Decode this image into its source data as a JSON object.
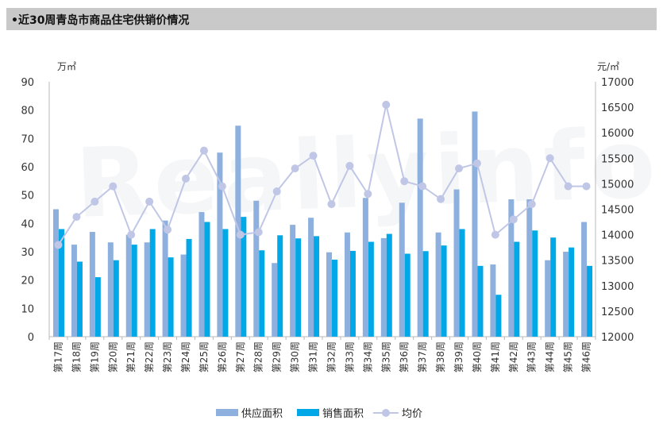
{
  "header": {
    "title": "•近30周青岛市商品住宅供销价情况"
  },
  "watermark": "Reallyinfo",
  "colors": {
    "supply": "#8eb0de",
    "sales": "#00a8e8",
    "price": "#c0c7e6",
    "header_bg": "#c9c9c9"
  },
  "chart_data": {
    "type": "bar",
    "left_unit": "万㎡",
    "right_unit": "元/㎡",
    "left_ticks": [
      "90",
      "80",
      "70",
      "60",
      "50",
      "40",
      "30",
      "20",
      "10",
      "0"
    ],
    "right_ticks": [
      "17000",
      "16500",
      "16000",
      "15500",
      "15000",
      "14500",
      "14000",
      "13500",
      "13000",
      "12500",
      "12000"
    ],
    "ylim_left": [
      0,
      90
    ],
    "ylim_right": [
      12000,
      17000
    ],
    "categories": [
      "第17周",
      "第18周",
      "第19周",
      "第20周",
      "第21周",
      "第22周",
      "第23周",
      "第24周",
      "第25周",
      "第26周",
      "第27周",
      "第28周",
      "第29周",
      "第30周",
      "第31周",
      "第32周",
      "第33周",
      "第34周",
      "第35周",
      "第36周",
      "第37周",
      "第38周",
      "第39周",
      "第40周",
      "第41周",
      "第42周",
      "第43周",
      "第44周",
      "第45周",
      "第46周"
    ],
    "series": [
      {
        "name": "供应面积",
        "axis": "left",
        "type": "bar",
        "values": [
          45,
          32.5,
          37,
          33.3,
          36,
          33.3,
          41,
          29,
          44,
          65,
          74.5,
          48,
          26,
          39.5,
          42,
          29.8,
          36.8,
          49,
          34.8,
          47.3,
          77,
          36.8,
          52,
          79.5,
          25.5,
          48.5,
          48.5,
          27,
          30,
          40.5
        ]
      },
      {
        "name": "销售面积",
        "axis": "left",
        "type": "bar",
        "values": [
          38,
          26.5,
          21,
          27,
          32.5,
          38,
          28,
          34.5,
          40.5,
          38,
          42.3,
          30.5,
          35.8,
          34.7,
          35.5,
          27.2,
          30.3,
          33.5,
          36.3,
          29.3,
          30.2,
          32.2,
          38,
          25,
          14.8,
          33.5,
          37.5,
          35,
          31.5,
          25
        ]
      },
      {
        "name": "均价",
        "axis": "right",
        "type": "line",
        "values": [
          13800,
          14350,
          14650,
          14950,
          14000,
          14650,
          14100,
          15100,
          15650,
          14950,
          14000,
          14050,
          14850,
          15300,
          15550,
          14600,
          15350,
          14800,
          16550,
          15050,
          14950,
          14700,
          15300,
          15400,
          14000,
          14300,
          14600,
          15500,
          14950,
          14950
        ]
      }
    ],
    "legend": [
      "供应面积",
      "销售面积",
      "均价"
    ],
    "legend_position": "bottom"
  }
}
